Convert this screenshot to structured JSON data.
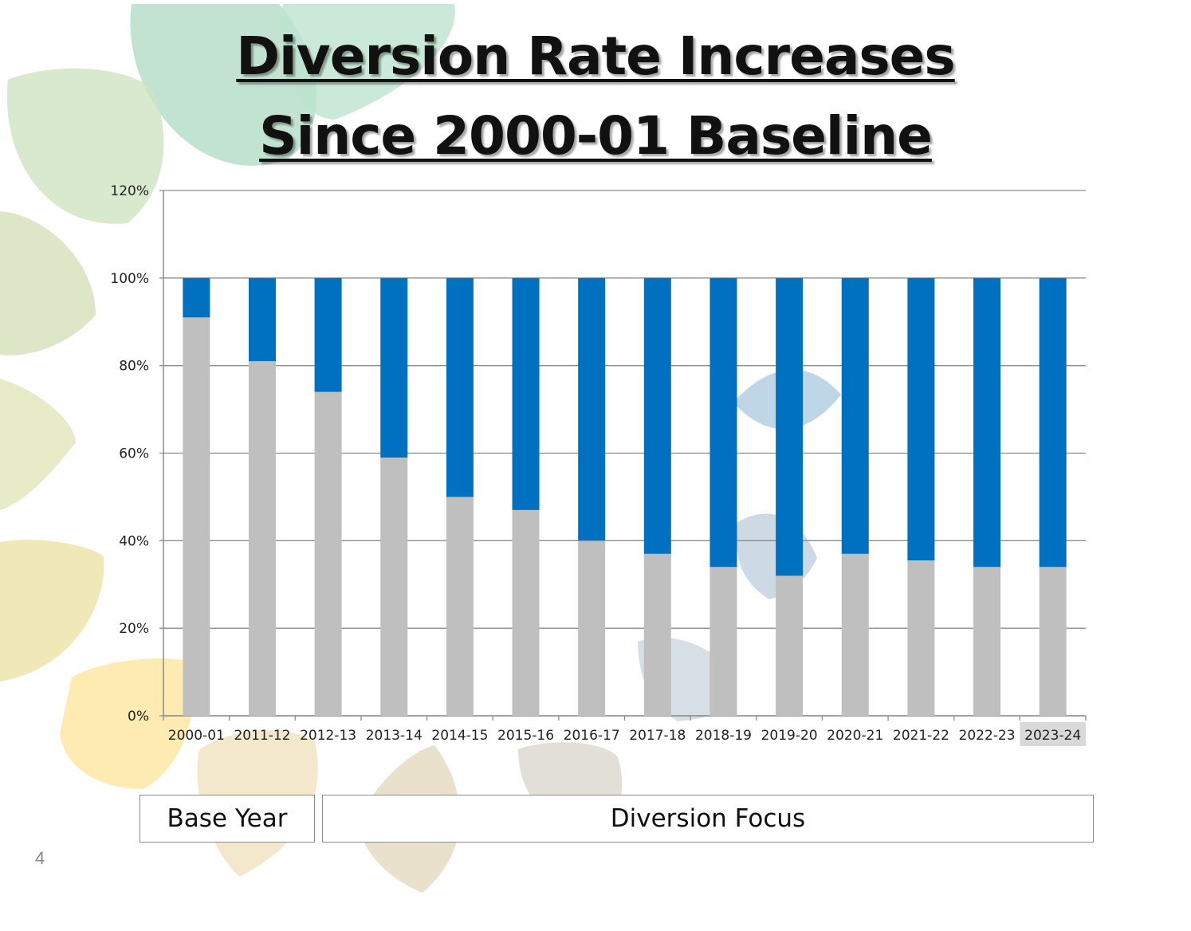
{
  "title": {
    "line1": "Diversion Rate Increases",
    "line2": "Since 2000-01 Baseline"
  },
  "chart_data": {
    "type": "bar",
    "stacked": true,
    "categories": [
      "2000-01",
      "2011-12",
      "2012-13",
      "2013-14",
      "2014-15",
      "2015-16",
      "2016-17",
      "2017-18",
      "2018-19",
      "2019-20",
      "2020-21",
      "2021-22",
      "2022-23",
      "2023-24"
    ],
    "series": [
      {
        "color": "#bfbfbf",
        "values": [
          91,
          81,
          74,
          59,
          50,
          47,
          40,
          37,
          34,
          32,
          37,
          35.5,
          34,
          34
        ]
      },
      {
        "color": "#0070c0",
        "values": [
          9,
          19,
          26,
          41,
          50,
          53,
          60,
          63,
          66,
          68,
          63,
          64.5,
          66,
          66
        ]
      }
    ],
    "y_ticks": [
      "0%",
      "20%",
      "40%",
      "60%",
      "80%",
      "100%",
      "120%"
    ],
    "ylim": [
      0,
      120
    ],
    "grid": true,
    "highlighted_category": "2023-24"
  },
  "period_labels": {
    "base_year": "Base Year",
    "diversion_focus": "Diversion Focus"
  },
  "page_number": "4",
  "colors": {
    "bar_gray": "#bfbfbf",
    "bar_blue": "#0070c0",
    "grid": "#8c8c8c"
  }
}
